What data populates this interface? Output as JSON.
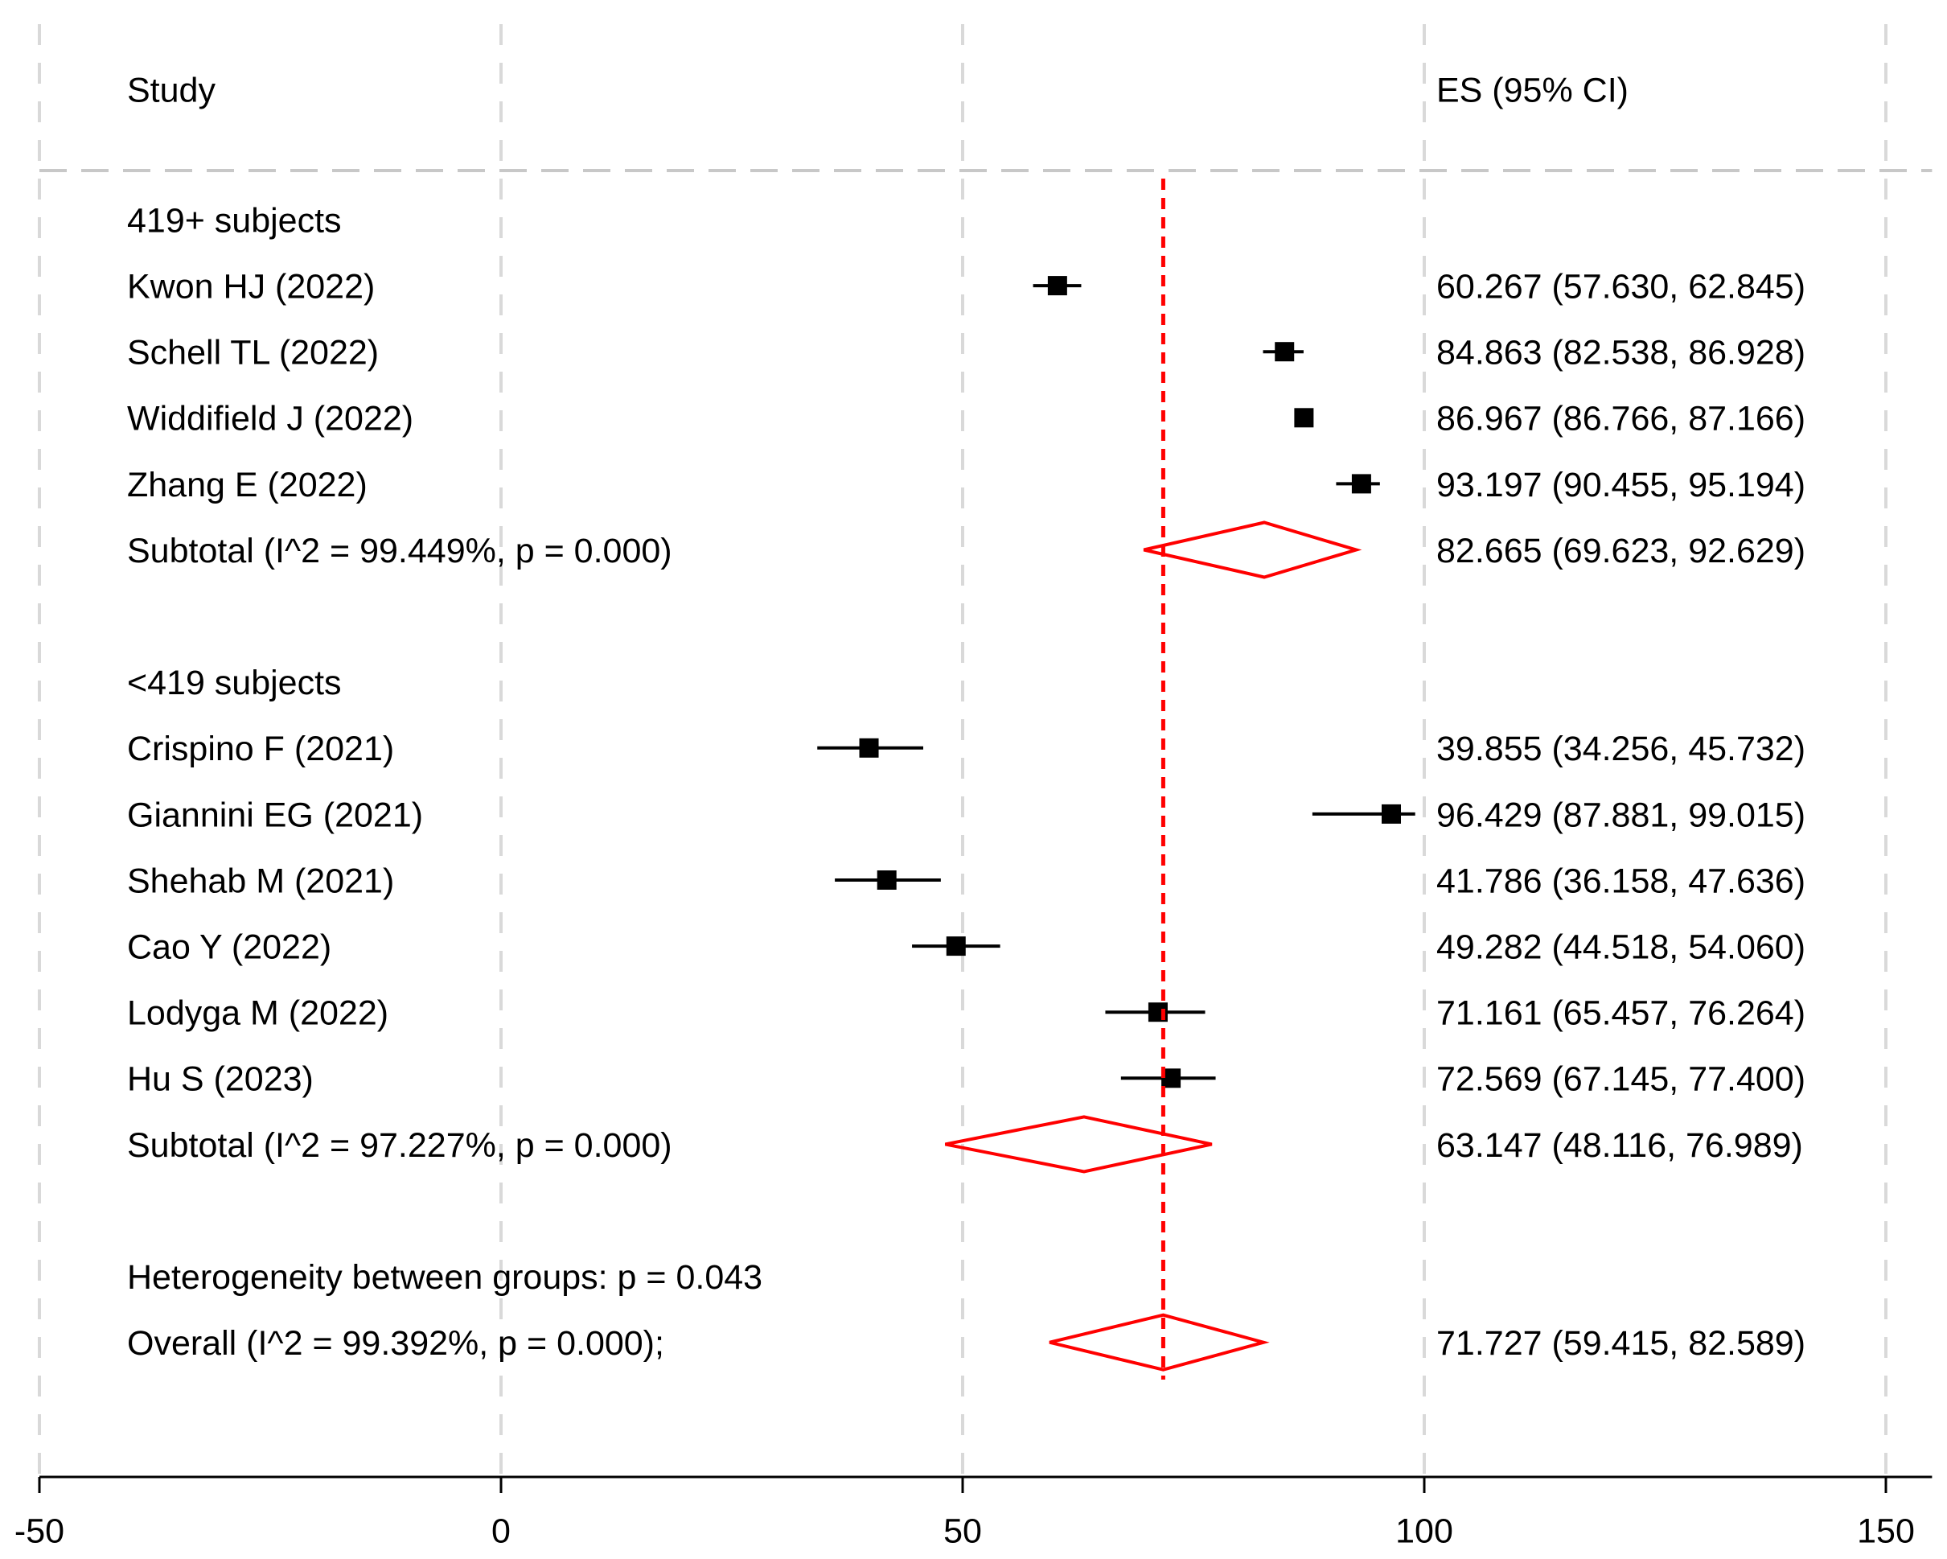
{
  "chart_data": {
    "type": "forest",
    "header": {
      "study": "Study",
      "es": "ES (95% CI)"
    },
    "x_axis": {
      "ticks": [
        -50,
        0,
        50,
        100,
        150
      ],
      "tick_labels": [
        "-50",
        "0",
        "50",
        "100",
        "150"
      ],
      "range": [
        -50,
        155
      ]
    },
    "reference_line": 71.727,
    "rows": [
      {
        "kind": "group",
        "label": "419+ subjects"
      },
      {
        "kind": "study",
        "label": "Kwon HJ (2022)",
        "es": 60.267,
        "lo": 57.63,
        "hi": 62.845,
        "text": "60.267 (57.630, 62.845)"
      },
      {
        "kind": "study",
        "label": "Schell TL (2022)",
        "es": 84.863,
        "lo": 82.538,
        "hi": 86.928,
        "text": "84.863 (82.538, 86.928)"
      },
      {
        "kind": "study",
        "label": "Widdifield J (2022)",
        "es": 86.967,
        "lo": 86.766,
        "hi": 87.166,
        "text": "86.967 (86.766, 87.166)"
      },
      {
        "kind": "study",
        "label": "Zhang E (2022)",
        "es": 93.197,
        "lo": 90.455,
        "hi": 95.194,
        "text": "93.197 (90.455, 95.194)"
      },
      {
        "kind": "subtotal",
        "label": "Subtotal  (I^2 = 99.449%, p = 0.000)",
        "es": 82.665,
        "lo": 69.623,
        "hi": 92.629,
        "text": "82.665 (69.623, 92.629)"
      },
      {
        "kind": "blank"
      },
      {
        "kind": "group",
        "label": "<419 subjects"
      },
      {
        "kind": "study",
        "label": "Crispino F (2021)",
        "es": 39.855,
        "lo": 34.256,
        "hi": 45.732,
        "text": "39.855 (34.256, 45.732)"
      },
      {
        "kind": "study",
        "label": "Giannini EG (2021)",
        "es": 96.429,
        "lo": 87.881,
        "hi": 99.015,
        "text": "96.429 (87.881, 99.015)"
      },
      {
        "kind": "study",
        "label": "Shehab M (2021)",
        "es": 41.786,
        "lo": 36.158,
        "hi": 47.636,
        "text": "41.786 (36.158, 47.636)"
      },
      {
        "kind": "study",
        "label": "Cao Y (2022)",
        "es": 49.282,
        "lo": 44.518,
        "hi": 54.06,
        "text": "49.282 (44.518, 54.060)"
      },
      {
        "kind": "study",
        "label": "Lodyga M (2022)",
        "es": 71.161,
        "lo": 65.457,
        "hi": 76.264,
        "text": "71.161 (65.457, 76.264)"
      },
      {
        "kind": "study",
        "label": "Hu S (2023)",
        "es": 72.569,
        "lo": 67.145,
        "hi": 77.4,
        "text": "72.569 (67.145, 77.400)"
      },
      {
        "kind": "subtotal",
        "label": "Subtotal  (I^2 = 97.227%, p = 0.000)",
        "es": 63.147,
        "lo": 48.116,
        "hi": 76.989,
        "text": "63.147 (48.116, 76.989)"
      },
      {
        "kind": "blank"
      },
      {
        "kind": "note",
        "label": "Heterogeneity between groups: p = 0.043"
      },
      {
        "kind": "overall",
        "label": "Overall  (I^2 = 99.392%, p = 0.000);",
        "es": 71.727,
        "lo": 59.415,
        "hi": 82.589,
        "text": "71.727 (59.415, 82.589)"
      }
    ],
    "colors": {
      "ink": "#000000",
      "pooled": "#ff0000",
      "grid": "#d9d9d9"
    }
  }
}
